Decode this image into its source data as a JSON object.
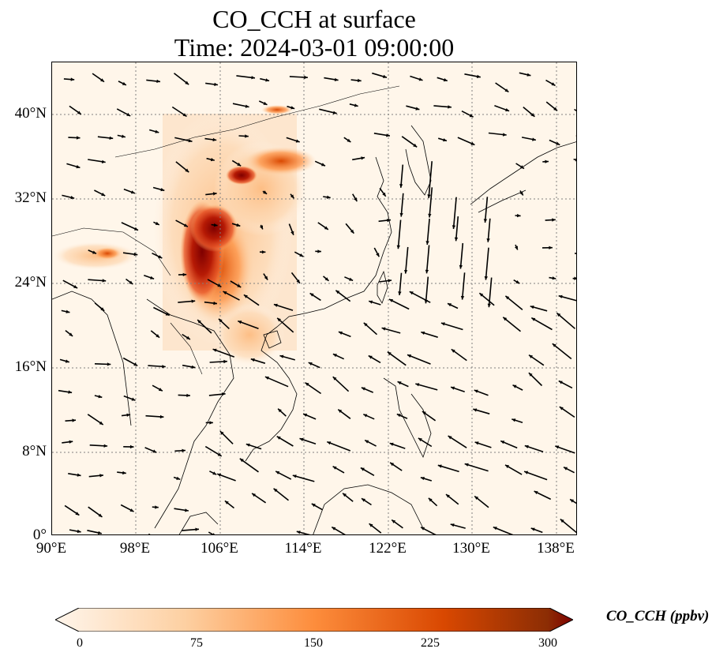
{
  "title_line1": "CO_CCH at surface",
  "title_line2": "Time: 2024-03-01 09:00:00",
  "lat_labels": [
    "40°N",
    "32°N",
    "24°N",
    "16°N",
    "8°N",
    "0°"
  ],
  "lon_labels": [
    "90°E",
    "98°E",
    "106°E",
    "114°E",
    "122°E",
    "130°E",
    "138°E"
  ],
  "colorbar": {
    "label": "CO_CCH (ppbv)",
    "ticks": [
      "0",
      "75",
      "150",
      "225",
      "300"
    ],
    "colors": [
      "#fff5eb",
      "#fdd0a2",
      "#fd8d3c",
      "#d94801",
      "#8c2d04",
      "#7f0000"
    ]
  },
  "colors": {
    "grid": "#808080",
    "coast": "#000000"
  }
}
